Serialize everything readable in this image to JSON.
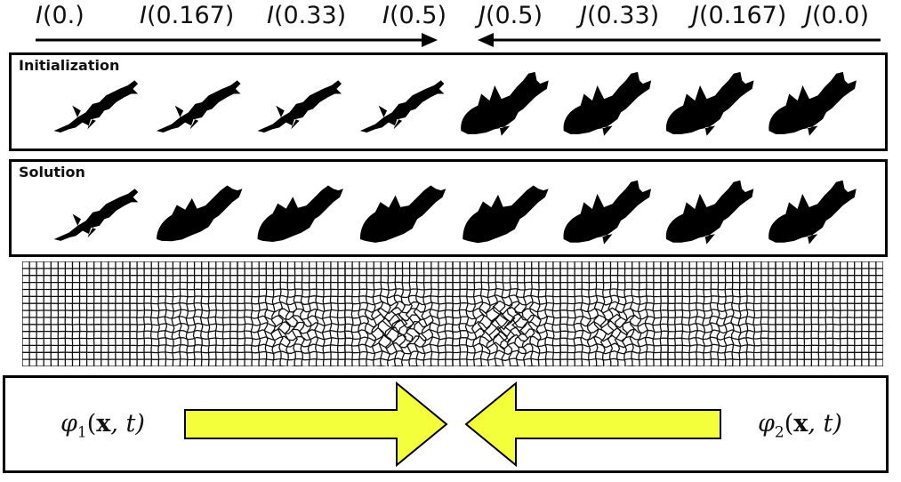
{
  "header": {
    "labels": [
      {
        "fn": "I",
        "arg": "(0.)"
      },
      {
        "fn": "I",
        "arg": "(0.167)"
      },
      {
        "fn": "I",
        "arg": "(0.33)"
      },
      {
        "fn": "I",
        "arg": "(0.5)"
      },
      {
        "fn": "J",
        "arg": "(0.5)"
      },
      {
        "fn": "J",
        "arg": "(0.33)"
      },
      {
        "fn": "J",
        "arg": "(0.167)"
      },
      {
        "fn": "J",
        "arg": "(0.0)"
      }
    ]
  },
  "panels": {
    "initialization_title": "Initialization",
    "solution_title": "Solution"
  },
  "phi": {
    "left_symbol": "φ",
    "left_sub": "1",
    "left_open": "(",
    "left_x": "x",
    "left_rest": ", t)",
    "right_symbol": "φ",
    "right_sub": "2",
    "right_open": "(",
    "right_x": "x",
    "right_rest": ", t)"
  },
  "colors": {
    "big_arrow_fill": "#f4ff3c",
    "big_arrow_stroke": "#000000",
    "fish": "#000000"
  }
}
